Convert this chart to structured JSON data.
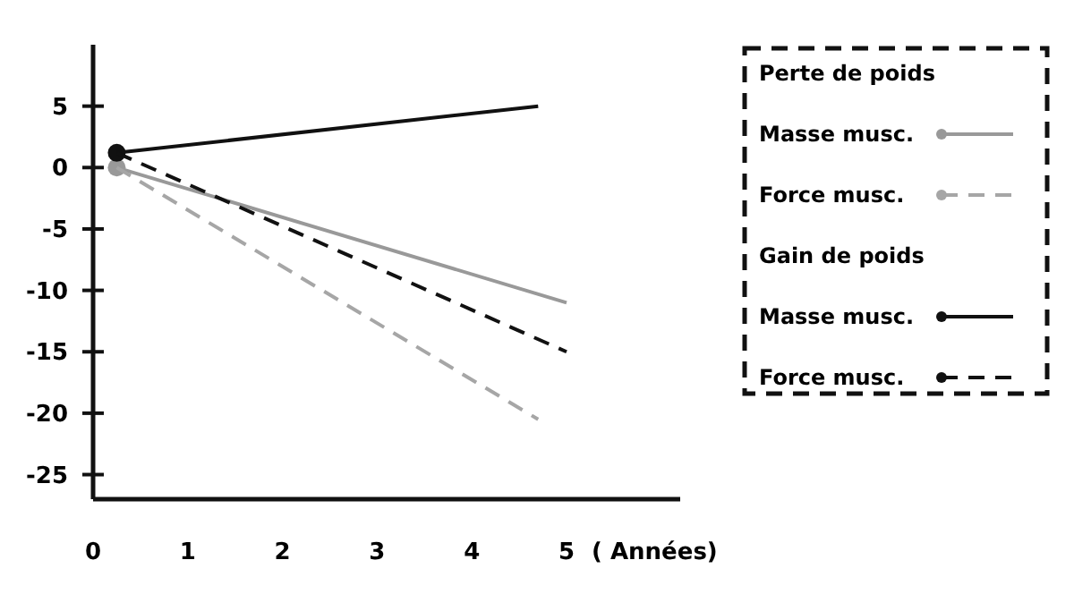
{
  "chart_data": {
    "type": "line",
    "xlabel": "( Années)",
    "xlim": [
      0,
      6.2
    ],
    "xticks": [
      0,
      1,
      2,
      3,
      4,
      5
    ],
    "ylim": [
      -27,
      10
    ],
    "yticks": [
      -25,
      -20,
      -15,
      -10,
      -5,
      0,
      5
    ],
    "grid": false,
    "legend": "right",
    "annotations": [
      "Perte de poids",
      "Gain de poids"
    ],
    "series": [
      {
        "type": "scatter",
        "marker": "circle",
        "color": "#999999",
        "x": [
          0.25
        ],
        "values": [
          0
        ]
      },
      {
        "type": "scatter",
        "marker": "circle",
        "color": "#111111",
        "x": [
          0.25
        ],
        "values": [
          1.2
        ]
      },
      {
        "name": "Masse musc.",
        "color": "#999999",
        "line_style": "solid",
        "x": [
          0.25,
          5
        ],
        "values": [
          0,
          -11
        ]
      },
      {
        "name": "Force musc.",
        "color": "#a6a6a6",
        "line_style": "dashed",
        "x": [
          0.25,
          4.7
        ],
        "values": [
          0,
          -20.5
        ]
      },
      {
        "name": "Masse musc.",
        "color": "#111111",
        "line_style": "solid",
        "x": [
          0.25,
          4.7
        ],
        "values": [
          1.2,
          5
        ]
      },
      {
        "name": "Force musc.",
        "color": "#111111",
        "line_style": "dashed",
        "x": [
          0.25,
          5
        ],
        "values": [
          1.2,
          -15
        ]
      }
    ]
  }
}
